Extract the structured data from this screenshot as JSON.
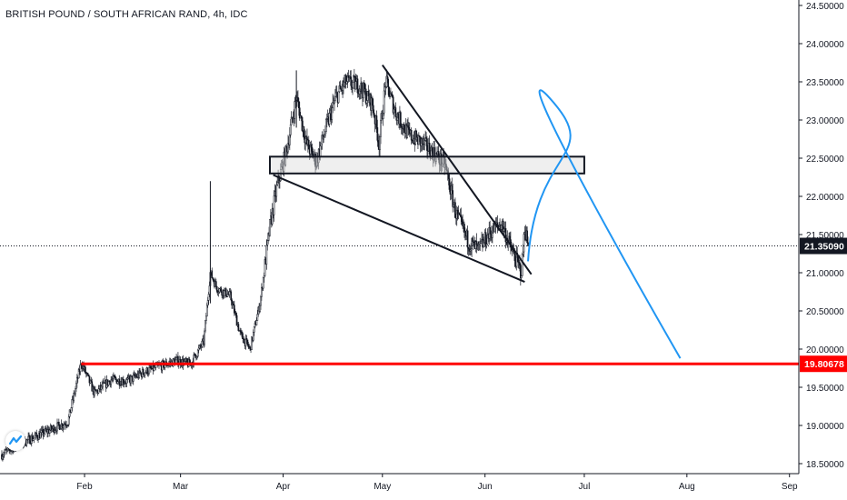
{
  "header": {
    "title": "BRITISH POUND / SOUTH AFRICAN RAND, 4h, IDC"
  },
  "colors": {
    "candle": "#131722",
    "support_line": "#ff0000",
    "projection": "#2196f3",
    "price_label_bg": "#131722",
    "support_label_bg": "#ff0000"
  },
  "icons": {
    "logo": "tradingview-logo-icon"
  },
  "chart_data": {
    "type": "candlestick",
    "symbol": "BRITISH POUND / SOUTH AFRICAN RAND",
    "interval": "4h",
    "source": "IDC",
    "x_ticks": [
      "Feb",
      "Mar",
      "Apr",
      "May",
      "Jun",
      "Jul",
      "Aug",
      "Sep"
    ],
    "x_tick_dates": [
      "2020-02-01",
      "2020-03-01",
      "2020-04-01",
      "2020-05-01",
      "2020-06-01",
      "2020-07-01",
      "2020-08-01",
      "2020-09-01"
    ],
    "y_ticks": [
      "18.50000",
      "19.00000",
      "19.50000",
      "20.00000",
      "20.50000",
      "21.00000",
      "21.50000",
      "22.00000",
      "22.50000",
      "23.00000",
      "23.50000",
      "24.00000",
      "24.50000"
    ],
    "ylim": [
      18.45,
      24.55
    ],
    "xlim": [
      "2020-01-07",
      "2020-09-03"
    ],
    "current_price": {
      "value": 21.3509,
      "label": "21.35090"
    },
    "support_level": {
      "value": 19.80678,
      "label": "19.80678",
      "start": "2020-01-31"
    },
    "resistance_zone": {
      "start": "2020-03-28",
      "end": "2020-07-01",
      "low": 22.3,
      "high": 22.52
    },
    "wedge_upper": [
      [
        "2020-05-01",
        23.72
      ],
      [
        "2020-06-15",
        20.98
      ]
    ],
    "wedge_lower": [
      [
        "2020-03-29",
        22.28
      ],
      [
        "2020-06-13",
        20.88
      ]
    ],
    "projection": [
      [
        "2020-06-14",
        21.15
      ],
      [
        "2020-06-26",
        22.2
      ],
      [
        "2020-07-30",
        19.88
      ]
    ],
    "price_path": [
      [
        "2020-01-07",
        18.62
      ],
      [
        "2020-01-12",
        18.75
      ],
      [
        "2020-01-17",
        18.85
      ],
      [
        "2020-01-22",
        18.95
      ],
      [
        "2020-01-27",
        19.05
      ],
      [
        "2020-01-31",
        19.82
      ],
      [
        "2020-02-04",
        19.42
      ],
      [
        "2020-02-09",
        19.6
      ],
      [
        "2020-02-14",
        19.58
      ],
      [
        "2020-02-19",
        19.7
      ],
      [
        "2020-02-24",
        19.78
      ],
      [
        "2020-02-29",
        19.85
      ],
      [
        "2020-03-04",
        19.8
      ],
      [
        "2020-03-08",
        20.1
      ],
      [
        "2020-03-10",
        21.0
      ],
      [
        "2020-03-12",
        20.8
      ],
      [
        "2020-03-16",
        20.7
      ],
      [
        "2020-03-19",
        20.2
      ],
      [
        "2020-03-22",
        20.0
      ],
      [
        "2020-03-25",
        20.6
      ],
      [
        "2020-03-28",
        21.6
      ],
      [
        "2020-03-30",
        22.1
      ],
      [
        "2020-04-02",
        22.6
      ],
      [
        "2020-04-05",
        23.3
      ],
      [
        "2020-04-08",
        22.7
      ],
      [
        "2020-04-11",
        22.45
      ],
      [
        "2020-04-14",
        22.9
      ],
      [
        "2020-04-17",
        23.3
      ],
      [
        "2020-04-20",
        23.5
      ],
      [
        "2020-04-24",
        23.45
      ],
      [
        "2020-04-28",
        23.2
      ],
      [
        "2020-04-30",
        22.7
      ],
      [
        "2020-05-02",
        23.5
      ],
      [
        "2020-05-05",
        23.1
      ],
      [
        "2020-05-09",
        22.8
      ],
      [
        "2020-05-13",
        22.7
      ],
      [
        "2020-05-17",
        22.55
      ],
      [
        "2020-05-20",
        22.4
      ],
      [
        "2020-05-23",
        21.8
      ],
      [
        "2020-05-27",
        21.4
      ],
      [
        "2020-05-30",
        21.3
      ],
      [
        "2020-06-03",
        21.55
      ],
      [
        "2020-06-06",
        21.65
      ],
      [
        "2020-06-09",
        21.3
      ],
      [
        "2020-06-11",
        21.1
      ],
      [
        "2020-06-12",
        21.0
      ],
      [
        "2020-06-13",
        21.6
      ],
      [
        "2020-06-14",
        21.35
      ]
    ]
  }
}
